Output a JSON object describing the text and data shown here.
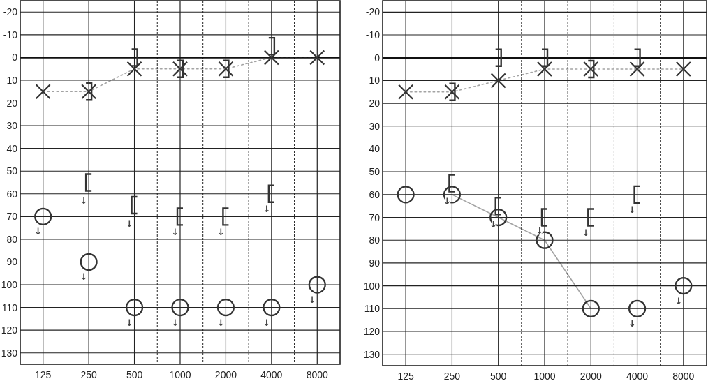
{
  "chart_data": [
    {
      "type": "line",
      "x": [
        125,
        250,
        500,
        1000,
        2000,
        4000,
        8000
      ],
      "log": "x",
      "xlim": [
        88.4,
        11314
      ],
      "xticks": [
        125,
        250,
        500,
        {
          "value": 707,
          "label": null
        },
        1000,
        {
          "value": 1414,
          "label": null
        },
        2000,
        {
          "value": 2828,
          "label": null
        },
        4000,
        {
          "value": 5657,
          "label": null
        },
        8000
      ],
      "ylim": [
        135,
        -25
      ],
      "yticks": [
        -20,
        -10,
        0,
        10,
        20,
        30,
        40,
        50,
        60,
        70,
        80,
        90,
        100,
        110,
        120,
        130
      ],
      "grid": true,
      "ref_lines": [
        {
          "axis": "y",
          "value": 0
        }
      ],
      "series": [
        {
          "color": "#333333",
          "marker": "cross",
          "line_style": "dotted",
          "values": [
            15,
            15,
            5,
            5,
            5,
            0,
            0
          ]
        },
        {
          "type": "scatter",
          "color": "#333333",
          "marker": "circle",
          "values": [
            70,
            90,
            110,
            110,
            110,
            110,
            100
          ]
        },
        {
          "type": "scatter",
          "color": "#333333",
          "values": [
            null,
            55,
            65,
            70,
            70,
            60,
            null
          ]
        },
        {
          "type": "scatter",
          "color": "#333333",
          "values": [
            null,
            15,
            0,
            5,
            5,
            -5,
            null
          ]
        }
      ],
      "annotations": [
        {
          "text": "↓",
          "x": 125,
          "y": 70
        },
        {
          "text": "↓",
          "x": 250,
          "y": 90
        },
        {
          "text": "↓",
          "x": 500,
          "y": 110
        },
        {
          "text": "↓",
          "x": 1000,
          "y": 110
        },
        {
          "text": "↓",
          "x": 2000,
          "y": 110
        },
        {
          "text": "↓",
          "x": 4000,
          "y": 110
        },
        {
          "text": "↓",
          "x": 8000,
          "y": 100
        },
        {
          "text": "↓",
          "x": 250,
          "y": 55
        },
        {
          "text": "↓",
          "x": 500,
          "y": 65
        },
        {
          "text": "↓",
          "x": 1000,
          "y": 70
        },
        {
          "text": "↓",
          "x": 2000,
          "y": 70
        },
        {
          "text": "↓",
          "x": 4000,
          "y": 60
        }
      ]
    },
    {
      "type": "line",
      "x": [
        125,
        250,
        500,
        1000,
        2000,
        4000,
        8000
      ],
      "log": "x",
      "xlim": [
        88.4,
        11314
      ],
      "xticks": [
        125,
        250,
        500,
        {
          "value": 707,
          "label": null
        },
        1000,
        {
          "value": 1414,
          "label": null
        },
        2000,
        {
          "value": 2828,
          "label": null
        },
        4000,
        {
          "value": 5657,
          "label": null
        },
        8000
      ],
      "ylim": [
        135,
        -25
      ],
      "yticks": [
        -20,
        -10,
        0,
        10,
        20,
        30,
        40,
        50,
        60,
        70,
        80,
        90,
        100,
        110,
        120,
        130
      ],
      "grid": true,
      "ref_lines": [
        {
          "axis": "y",
          "value": 0
        }
      ],
      "series": [
        {
          "color": "#333333",
          "marker": "cross",
          "line_style": "dotted",
          "values": [
            15,
            15,
            10,
            5,
            5,
            5,
            5
          ]
        },
        {
          "color": "#333333",
          "marker": "circle",
          "line_style": "solid",
          "values": [
            60,
            60,
            70,
            80,
            110,
            null,
            null
          ]
        },
        {
          "type": "scatter",
          "color": "#333333",
          "marker": "circle",
          "values": [
            null,
            null,
            null,
            null,
            null,
            110,
            100
          ]
        },
        {
          "type": "scatter",
          "color": "#333333",
          "values": [
            null,
            55,
            65,
            70,
            70,
            60,
            null
          ]
        },
        {
          "type": "scatter",
          "color": "#333333",
          "values": [
            null,
            15,
            0,
            0,
            5,
            0,
            null
          ]
        }
      ],
      "annotations": [
        {
          "text": "↓",
          "x": 4000,
          "y": 110
        },
        {
          "text": "↓",
          "x": 8000,
          "y": 100
        },
        {
          "text": "↓",
          "x": 250,
          "y": 55
        },
        {
          "text": "↓",
          "x": 500,
          "y": 65
        },
        {
          "text": "↓",
          "x": 1000,
          "y": 70
        },
        {
          "text": "↓",
          "x": 2000,
          "y": 70
        },
        {
          "text": "↓",
          "x": 4000,
          "y": 60
        }
      ]
    }
  ]
}
